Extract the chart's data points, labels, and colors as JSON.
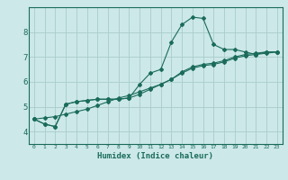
{
  "title": "",
  "xlabel": "Humidex (Indice chaleur)",
  "background_color": "#cce8e8",
  "grid_color": "#aacccc",
  "line_color": "#1a6b5a",
  "x_values": [
    0,
    1,
    2,
    3,
    4,
    5,
    6,
    7,
    8,
    9,
    10,
    11,
    12,
    13,
    14,
    15,
    16,
    17,
    18,
    19,
    20,
    21,
    22,
    23
  ],
  "series1": [
    4.5,
    4.3,
    4.2,
    5.1,
    5.2,
    5.25,
    5.3,
    5.3,
    5.3,
    5.35,
    5.9,
    6.35,
    6.5,
    7.6,
    8.3,
    8.6,
    8.55,
    7.5,
    7.3,
    7.3,
    7.2,
    7.1,
    7.15,
    7.2
  ],
  "series2": [
    4.5,
    4.3,
    4.2,
    5.1,
    5.2,
    5.25,
    5.3,
    5.3,
    5.3,
    5.35,
    5.5,
    5.7,
    5.9,
    6.1,
    6.4,
    6.6,
    6.7,
    6.75,
    6.85,
    7.0,
    7.1,
    7.15,
    7.2,
    7.2
  ],
  "series3": [
    4.5,
    4.55,
    4.6,
    4.7,
    4.8,
    4.9,
    5.05,
    5.2,
    5.35,
    5.45,
    5.6,
    5.75,
    5.9,
    6.1,
    6.35,
    6.55,
    6.65,
    6.7,
    6.8,
    6.95,
    7.05,
    7.1,
    7.2,
    7.2
  ],
  "ylim": [
    3.5,
    9.0
  ],
  "yticks": [
    4,
    5,
    6,
    7,
    8
  ],
  "xlim": [
    -0.5,
    23.5
  ]
}
